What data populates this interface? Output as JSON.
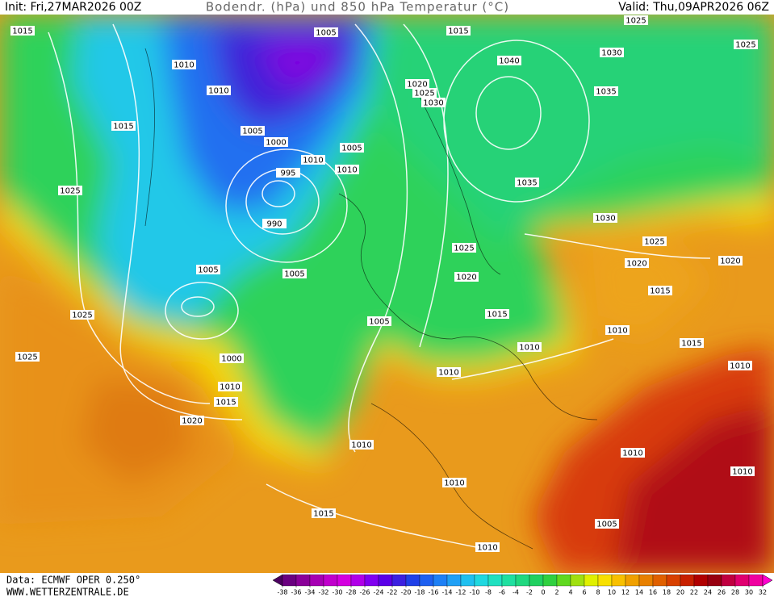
{
  "header": {
    "init": "Init: Fri,27MAR2026 00Z",
    "title": "Bodendr. (hPa) und 850 hPa Temperatur (°C)",
    "valid": "Valid: Thu,09APR2026 06Z"
  },
  "footer": {
    "data": "Data: ECMWF OPER 0.250°",
    "website": "WWW.WETTERZENTRALE.DE"
  },
  "isobar_labels": [
    1015,
    1005,
    1015,
    1025,
    1010,
    1010,
    1040,
    1030,
    1025,
    1020,
    1025,
    1030,
    1035,
    1015,
    1005,
    1000,
    1005,
    1010,
    1010,
    995,
    1025,
    1035,
    990,
    1030,
    1025,
    1025,
    1020,
    1020,
    1005,
    1005,
    1020,
    1015,
    1025,
    1015,
    1005,
    1010,
    1015,
    1010,
    1025,
    1000,
    1010,
    1010,
    1010,
    1015,
    1020,
    1010,
    1010,
    1010,
    1010,
    1015,
    1005,
    1010
  ],
  "colorbar": {
    "ticks": [
      -38,
      -36,
      -34,
      -32,
      -30,
      -28,
      -26,
      -24,
      -22,
      -20,
      -18,
      -16,
      -14,
      -12,
      -10,
      -8,
      -6,
      -4,
      -2,
      0,
      2,
      4,
      6,
      8,
      10,
      12,
      14,
      16,
      18,
      20,
      22,
      24,
      26,
      28,
      30,
      32
    ],
    "colors": [
      "#4b0060",
      "#6a0080",
      "#8a0099",
      "#a600b3",
      "#c000cc",
      "#d400e0",
      "#b000e8",
      "#8000f0",
      "#5a00e8",
      "#3c20e0",
      "#2040e8",
      "#1e60f0",
      "#1e80f5",
      "#20a0f5",
      "#20c0f0",
      "#20d8e0",
      "#20e0c0",
      "#20e0a0",
      "#20d880",
      "#20d060",
      "#30d040",
      "#60d820",
      "#a0e010",
      "#e0f000",
      "#f8e000",
      "#f8c000",
      "#f0a000",
      "#e88000",
      "#e06000",
      "#d84000",
      "#c82000",
      "#b00000",
      "#980010",
      "#c00040",
      "#e00070",
      "#f000a0",
      "#ff00d0"
    ]
  }
}
